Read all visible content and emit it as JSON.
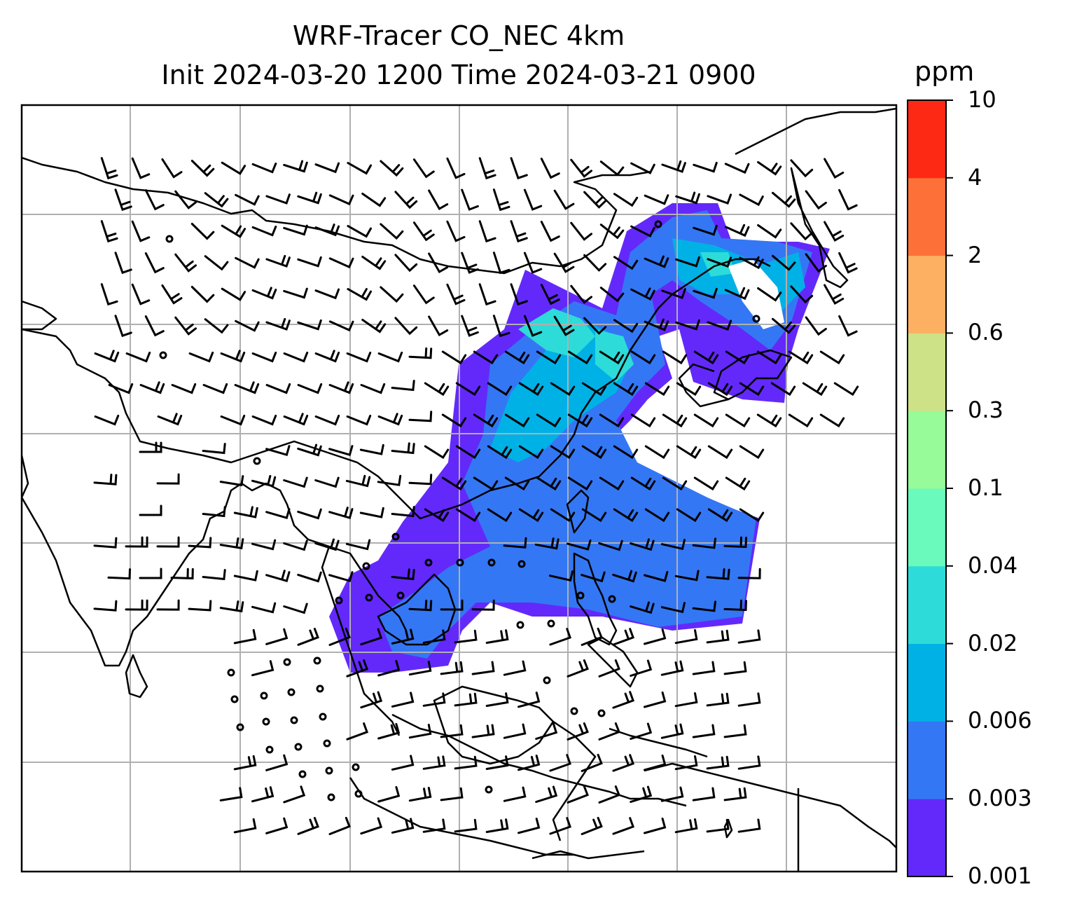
{
  "title": {
    "line1": "WRF-Tracer CO_NEC 4km",
    "line2": "Init 2024-03-20 1200 Time 2024-03-21 0900"
  },
  "colorbar": {
    "unit": "ppm",
    "levels": [
      "0.001",
      "0.003",
      "0.006",
      "0.02",
      "0.04",
      "0.1",
      "0.3",
      "0.6",
      "2",
      "4",
      "10"
    ],
    "colors": [
      "#6329fb",
      "#3477f4",
      "#00b1e6",
      "#2ddbd8",
      "#6afbbc",
      "#96fb98",
      "#cde187",
      "#fdb062",
      "#fd7139",
      "#fd2915"
    ]
  },
  "map": {
    "type": "contour-fill with wind barbs",
    "frame_color": "#000000",
    "grid_color": "#b0b0b0",
    "coastline_color": "#000000",
    "gridlines": true
  }
}
